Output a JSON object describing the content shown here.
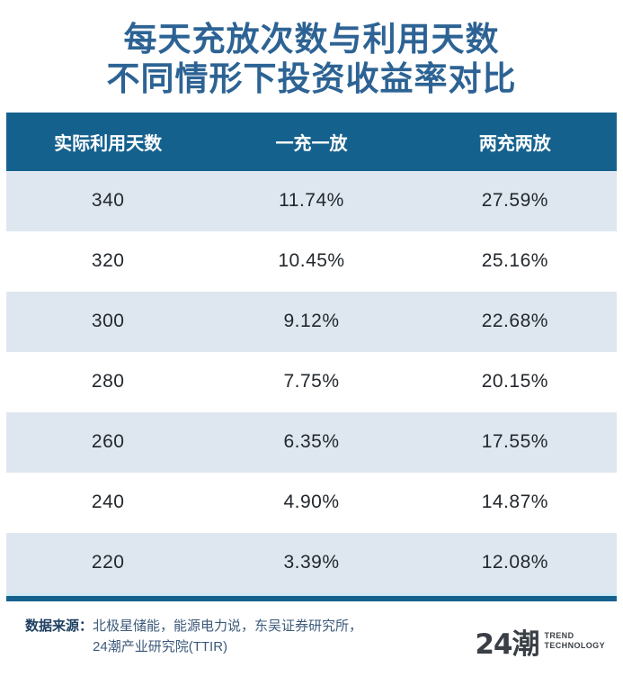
{
  "title": {
    "line1": "每天充放次数与利用天数",
    "line2": "不同情形下投资收益率对比"
  },
  "chart_data": {
    "type": "table",
    "title": "每天充放次数与利用天数不同情形下投资收益率对比",
    "columns": [
      "实际利用天数",
      "一充一放",
      "两充两放"
    ],
    "rows": [
      [
        "340",
        "11.74%",
        "27.59%"
      ],
      [
        "320",
        "10.45%",
        "25.16%"
      ],
      [
        "300",
        "9.12%",
        "22.68%"
      ],
      [
        "280",
        "7.75%",
        "20.15%"
      ],
      [
        "260",
        "6.35%",
        "17.55%"
      ],
      [
        "240",
        "4.90%",
        "14.87%"
      ],
      [
        "220",
        "3.39%",
        "12.08%"
      ]
    ]
  },
  "footer": {
    "source_label": "数据来源：",
    "source_line1": "北极星储能，能源电力说，东吴证券研究所，",
    "source_line2": "24潮产业研究院(TTIR)",
    "logo_text": "24潮",
    "logo_sub_line1": "TREND",
    "logo_sub_line2": "TECHNOLOGY"
  },
  "colors": {
    "title_blue": "#2d6394",
    "header_bg": "#15618e",
    "row_alt_bg": "#dee7ef",
    "row_bg": "#ffffff",
    "row_text": "#23282d",
    "separator": "#15618e",
    "separator_light": "#cfe9f5",
    "footer_label": "#1d3f61",
    "footer_text": "#3c5a7a",
    "logo_color": "#3a3f46"
  }
}
